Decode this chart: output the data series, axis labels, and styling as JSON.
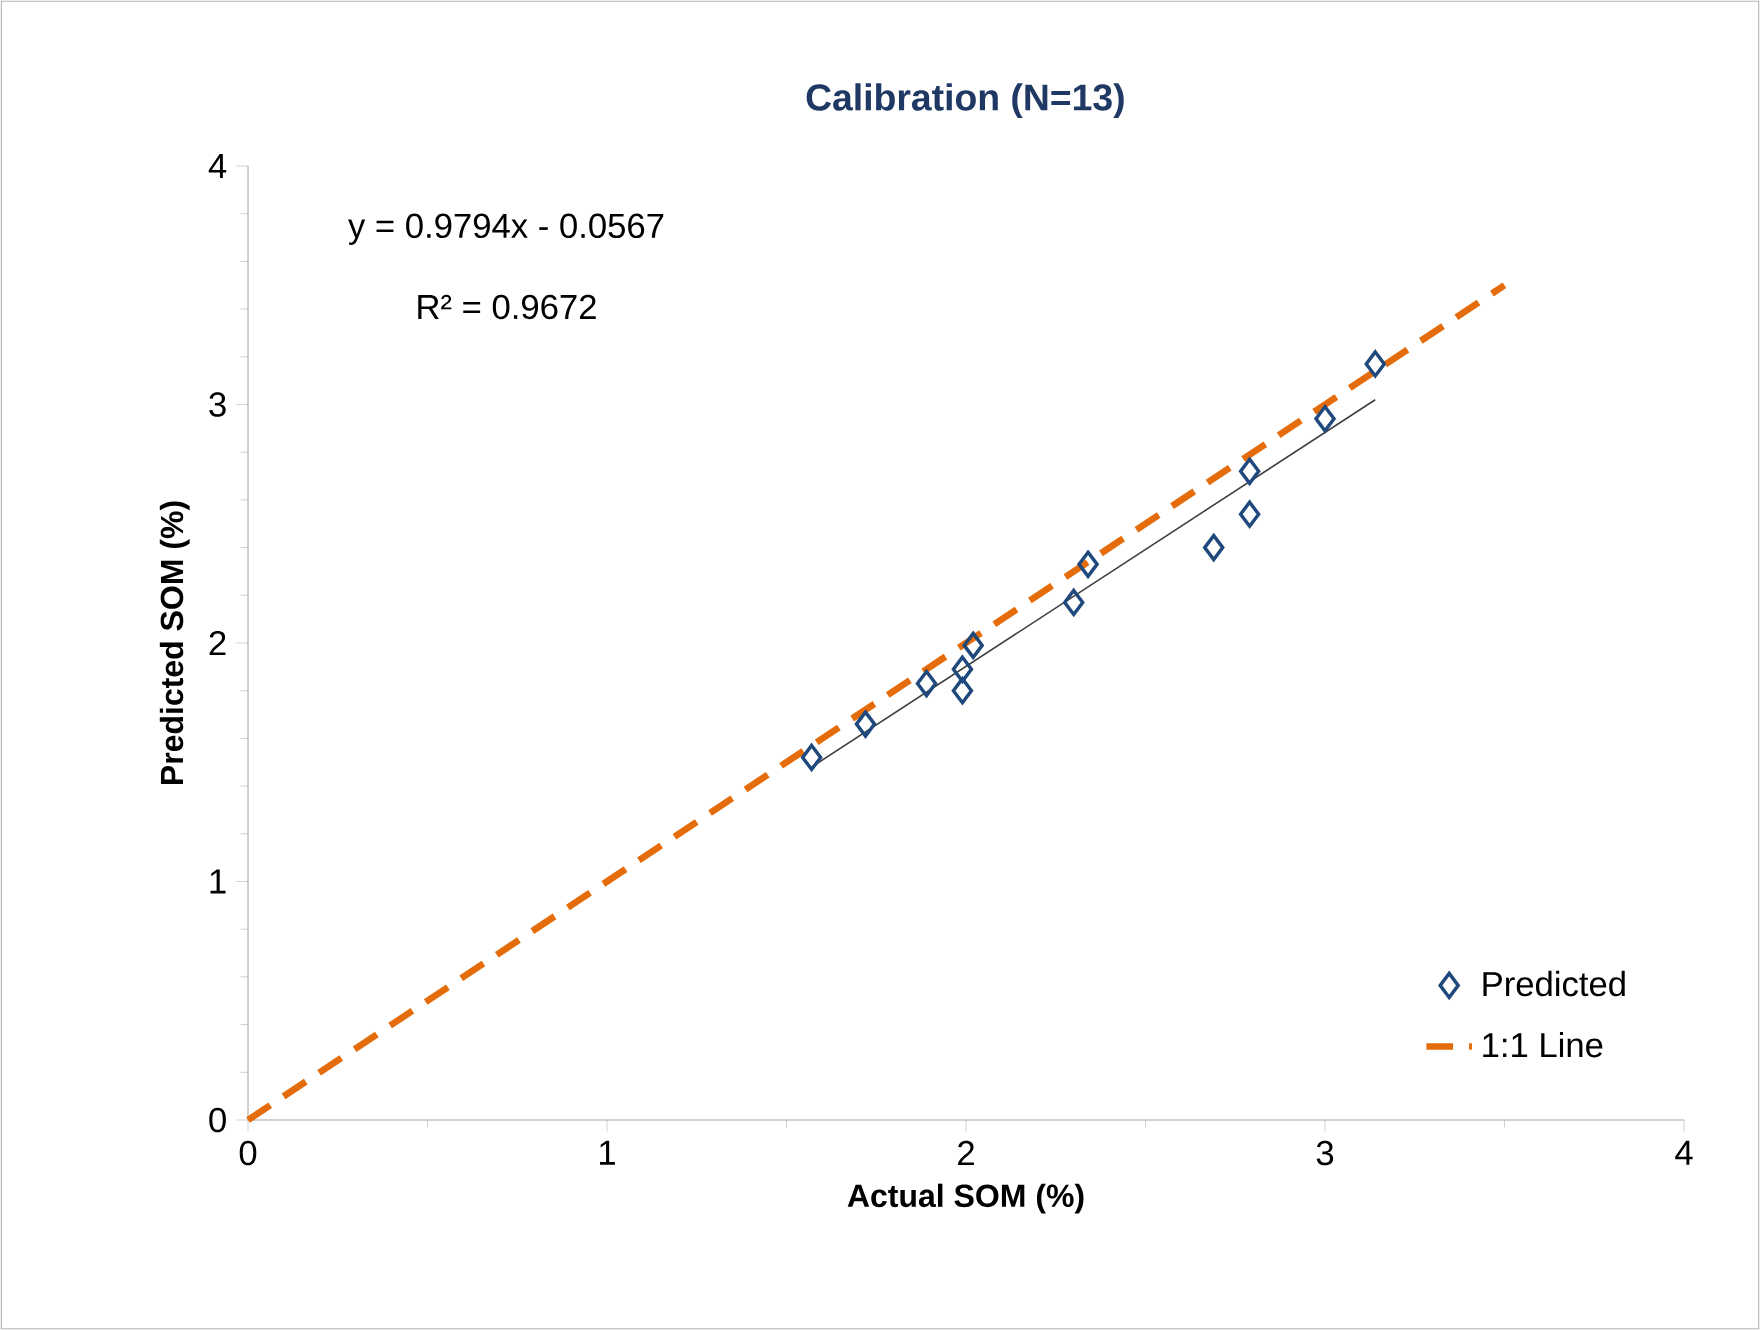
{
  "chart_data": {
    "type": "scatter",
    "title": "Calibration (N=13)",
    "xlabel": "Actual SOM (%)",
    "ylabel": "Predicted SOM (%)",
    "xlim": [
      0,
      4
    ],
    "ylim": [
      0,
      4
    ],
    "xticks": [
      0,
      1,
      2,
      3,
      4
    ],
    "yticks": [
      0,
      1,
      2,
      3,
      4
    ],
    "grid": false,
    "legend": "bottom right",
    "annotations": [
      "y = 0.9794x - 0.0567",
      "R² = 0.9672"
    ],
    "series": [
      {
        "name": "Predicted",
        "marker": "diamond",
        "color": "#1f497d",
        "x": [
          1.57,
          1.72,
          1.89,
          1.99,
          1.99,
          2.02,
          2.3,
          2.34,
          2.69,
          2.79,
          2.79,
          3.0,
          3.14
        ],
        "values": [
          1.52,
          1.66,
          1.83,
          1.8,
          1.89,
          1.99,
          2.17,
          2.33,
          2.4,
          2.54,
          2.72,
          2.94,
          3.17
        ]
      },
      {
        "name": "1:1 Line",
        "type": "line",
        "marker": "none",
        "line_style": "dashed",
        "color": "#e46c0a",
        "x": [
          0,
          3.5
        ],
        "values": [
          0,
          3.5
        ]
      },
      {
        "type": "line",
        "marker": "none",
        "line_style": "solid",
        "color": "#404040",
        "x": [
          1.57,
          3.14
        ],
        "values": [
          1.48,
          3.02
        ]
      }
    ]
  }
}
